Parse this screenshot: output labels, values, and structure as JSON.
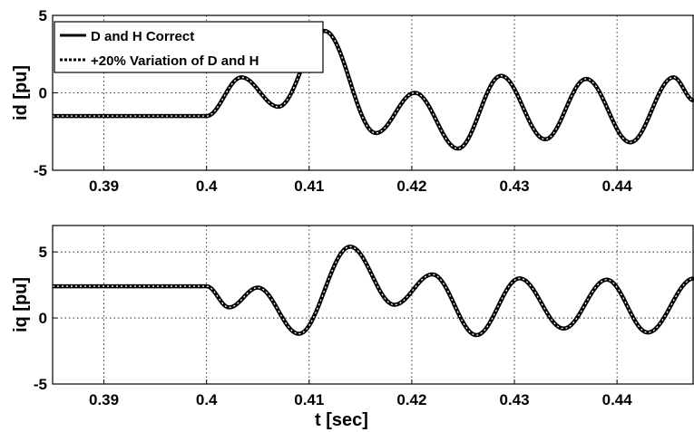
{
  "chart_data": [
    {
      "type": "line",
      "ylabel": "id [pu]",
      "xlabel": "",
      "xlim": [
        0.385,
        0.4475
      ],
      "ylim": [
        -5,
        5
      ],
      "x_ticks": [
        "0.39",
        "0.4",
        "0.41",
        "0.42",
        "0.43",
        "0.44"
      ],
      "y_ticks": [
        "-5",
        "0",
        "5"
      ],
      "grid": true,
      "legend_position": "top-left",
      "series": [
        {
          "name": "D and H Correct",
          "style": "solid",
          "x": [
            0.385,
            0.4,
            0.4034,
            0.407,
            0.4115,
            0.4165,
            0.4203,
            0.4245,
            0.4287,
            0.433,
            0.437,
            0.4413,
            0.4455,
            0.4475
          ],
          "y": [
            -1.5,
            -1.5,
            1.0,
            -0.9,
            4.0,
            -2.6,
            0.0,
            -3.6,
            1.1,
            -3.0,
            0.9,
            -3.2,
            1.0,
            -0.5
          ]
        },
        {
          "name": "+20% Variation of D and H",
          "style": "dotted",
          "x": [
            0.385,
            0.4,
            0.4034,
            0.407,
            0.4115,
            0.4165,
            0.4203,
            0.4245,
            0.4287,
            0.433,
            0.437,
            0.4413,
            0.4455,
            0.4475
          ],
          "y": [
            -1.5,
            -1.5,
            1.0,
            -0.9,
            4.0,
            -2.6,
            0.0,
            -3.6,
            1.1,
            -3.0,
            0.9,
            -3.2,
            1.0,
            -0.5
          ]
        }
      ]
    },
    {
      "type": "line",
      "ylabel": "iq [pu]",
      "xlabel": "t [sec]",
      "xlim": [
        0.385,
        0.4475
      ],
      "ylim": [
        -5,
        7
      ],
      "x_ticks": [
        "0.39",
        "0.4",
        "0.41",
        "0.42",
        "0.43",
        "0.44"
      ],
      "y_ticks": [
        "-5",
        "0",
        "5"
      ],
      "grid": true,
      "series": [
        {
          "name": "D and H Correct",
          "style": "solid",
          "x": [
            0.385,
            0.4,
            0.4022,
            0.405,
            0.409,
            0.414,
            0.4183,
            0.422,
            0.4263,
            0.4305,
            0.4348,
            0.439,
            0.443,
            0.4475
          ],
          "y": [
            2.4,
            2.4,
            0.8,
            2.3,
            -1.2,
            5.4,
            1.0,
            3.3,
            -1.3,
            3.0,
            -0.8,
            2.9,
            -1.1,
            3.0
          ]
        },
        {
          "name": "+20% Variation of D and H",
          "style": "dotted",
          "x": [
            0.385,
            0.4,
            0.4022,
            0.405,
            0.409,
            0.414,
            0.4183,
            0.422,
            0.4263,
            0.4305,
            0.4348,
            0.439,
            0.443,
            0.4475
          ],
          "y": [
            2.4,
            2.4,
            0.8,
            2.3,
            -1.2,
            5.4,
            1.0,
            3.3,
            -1.3,
            3.0,
            -0.8,
            2.9,
            -1.1,
            3.0
          ]
        }
      ]
    }
  ]
}
